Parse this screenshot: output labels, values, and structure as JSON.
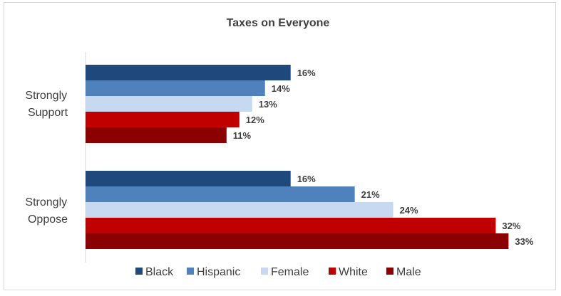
{
  "chart_data": {
    "type": "bar",
    "orientation": "horizontal",
    "title": "Taxes on Everyone",
    "categories": [
      "Strongly Support",
      "Strongly Oppose"
    ],
    "category_lines": [
      [
        "Strongly",
        "Support"
      ],
      [
        "Strongly",
        "Oppose"
      ]
    ],
    "series": [
      {
        "name": "Black",
        "color": "#1f497d",
        "values": [
          16,
          16
        ]
      },
      {
        "name": "Hispanic",
        "color": "#4f81bd",
        "values": [
          14,
          21
        ]
      },
      {
        "name": "Female",
        "color": "#c6d9f1",
        "values": [
          13,
          24
        ]
      },
      {
        "name": "White",
        "color": "#c00000",
        "values": [
          12,
          32
        ]
      },
      {
        "name": "Male",
        "color": "#8b0000",
        "values": [
          11,
          33
        ]
      }
    ],
    "value_suffix": "%",
    "xlim": [
      0,
      33.2
    ],
    "grid": false,
    "legend_position": "bottom",
    "xlabel": "",
    "ylabel": ""
  }
}
